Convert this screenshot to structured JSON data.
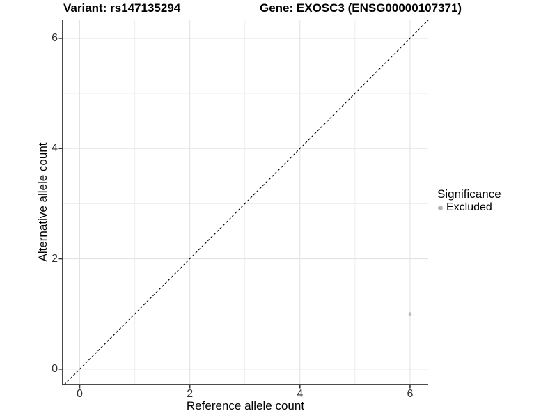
{
  "chart_data": {
    "type": "scatter",
    "title_left": "Variant: rs147135294",
    "title_right": "Gene: EXOSC3 (ENSG00000107371)",
    "xlabel": "Reference allele count",
    "ylabel": "Alternative allele count",
    "xlim": [
      -0.31,
      6.33
    ],
    "ylim": [
      -0.28,
      6.34
    ],
    "x_major_ticks": [
      0,
      2,
      4,
      6
    ],
    "y_major_ticks": [
      0,
      2,
      4,
      6
    ],
    "x_minor_ticks": [
      1,
      3,
      5
    ],
    "y_minor_ticks": [
      1,
      3,
      5
    ],
    "grid": true,
    "reference_line": {
      "slope": 1,
      "intercept": 0,
      "style": "dashed",
      "color": "#000000"
    },
    "series": [
      {
        "name": "Excluded",
        "color": "#bdbdbd",
        "points": [
          {
            "x": 6,
            "y": 1
          }
        ]
      }
    ],
    "legend": {
      "title": "Significance",
      "position": "right",
      "entries": [
        {
          "label": "Excluded",
          "color": "#b4b4b4"
        }
      ]
    },
    "colors": {
      "background": "#ffffff",
      "grid_major": "#e3e3e3",
      "grid_minor": "#ededed",
      "axis_line": "#333333",
      "tick_mark": "#333333",
      "tick_text": "#303030",
      "title_text": "#000000"
    }
  }
}
